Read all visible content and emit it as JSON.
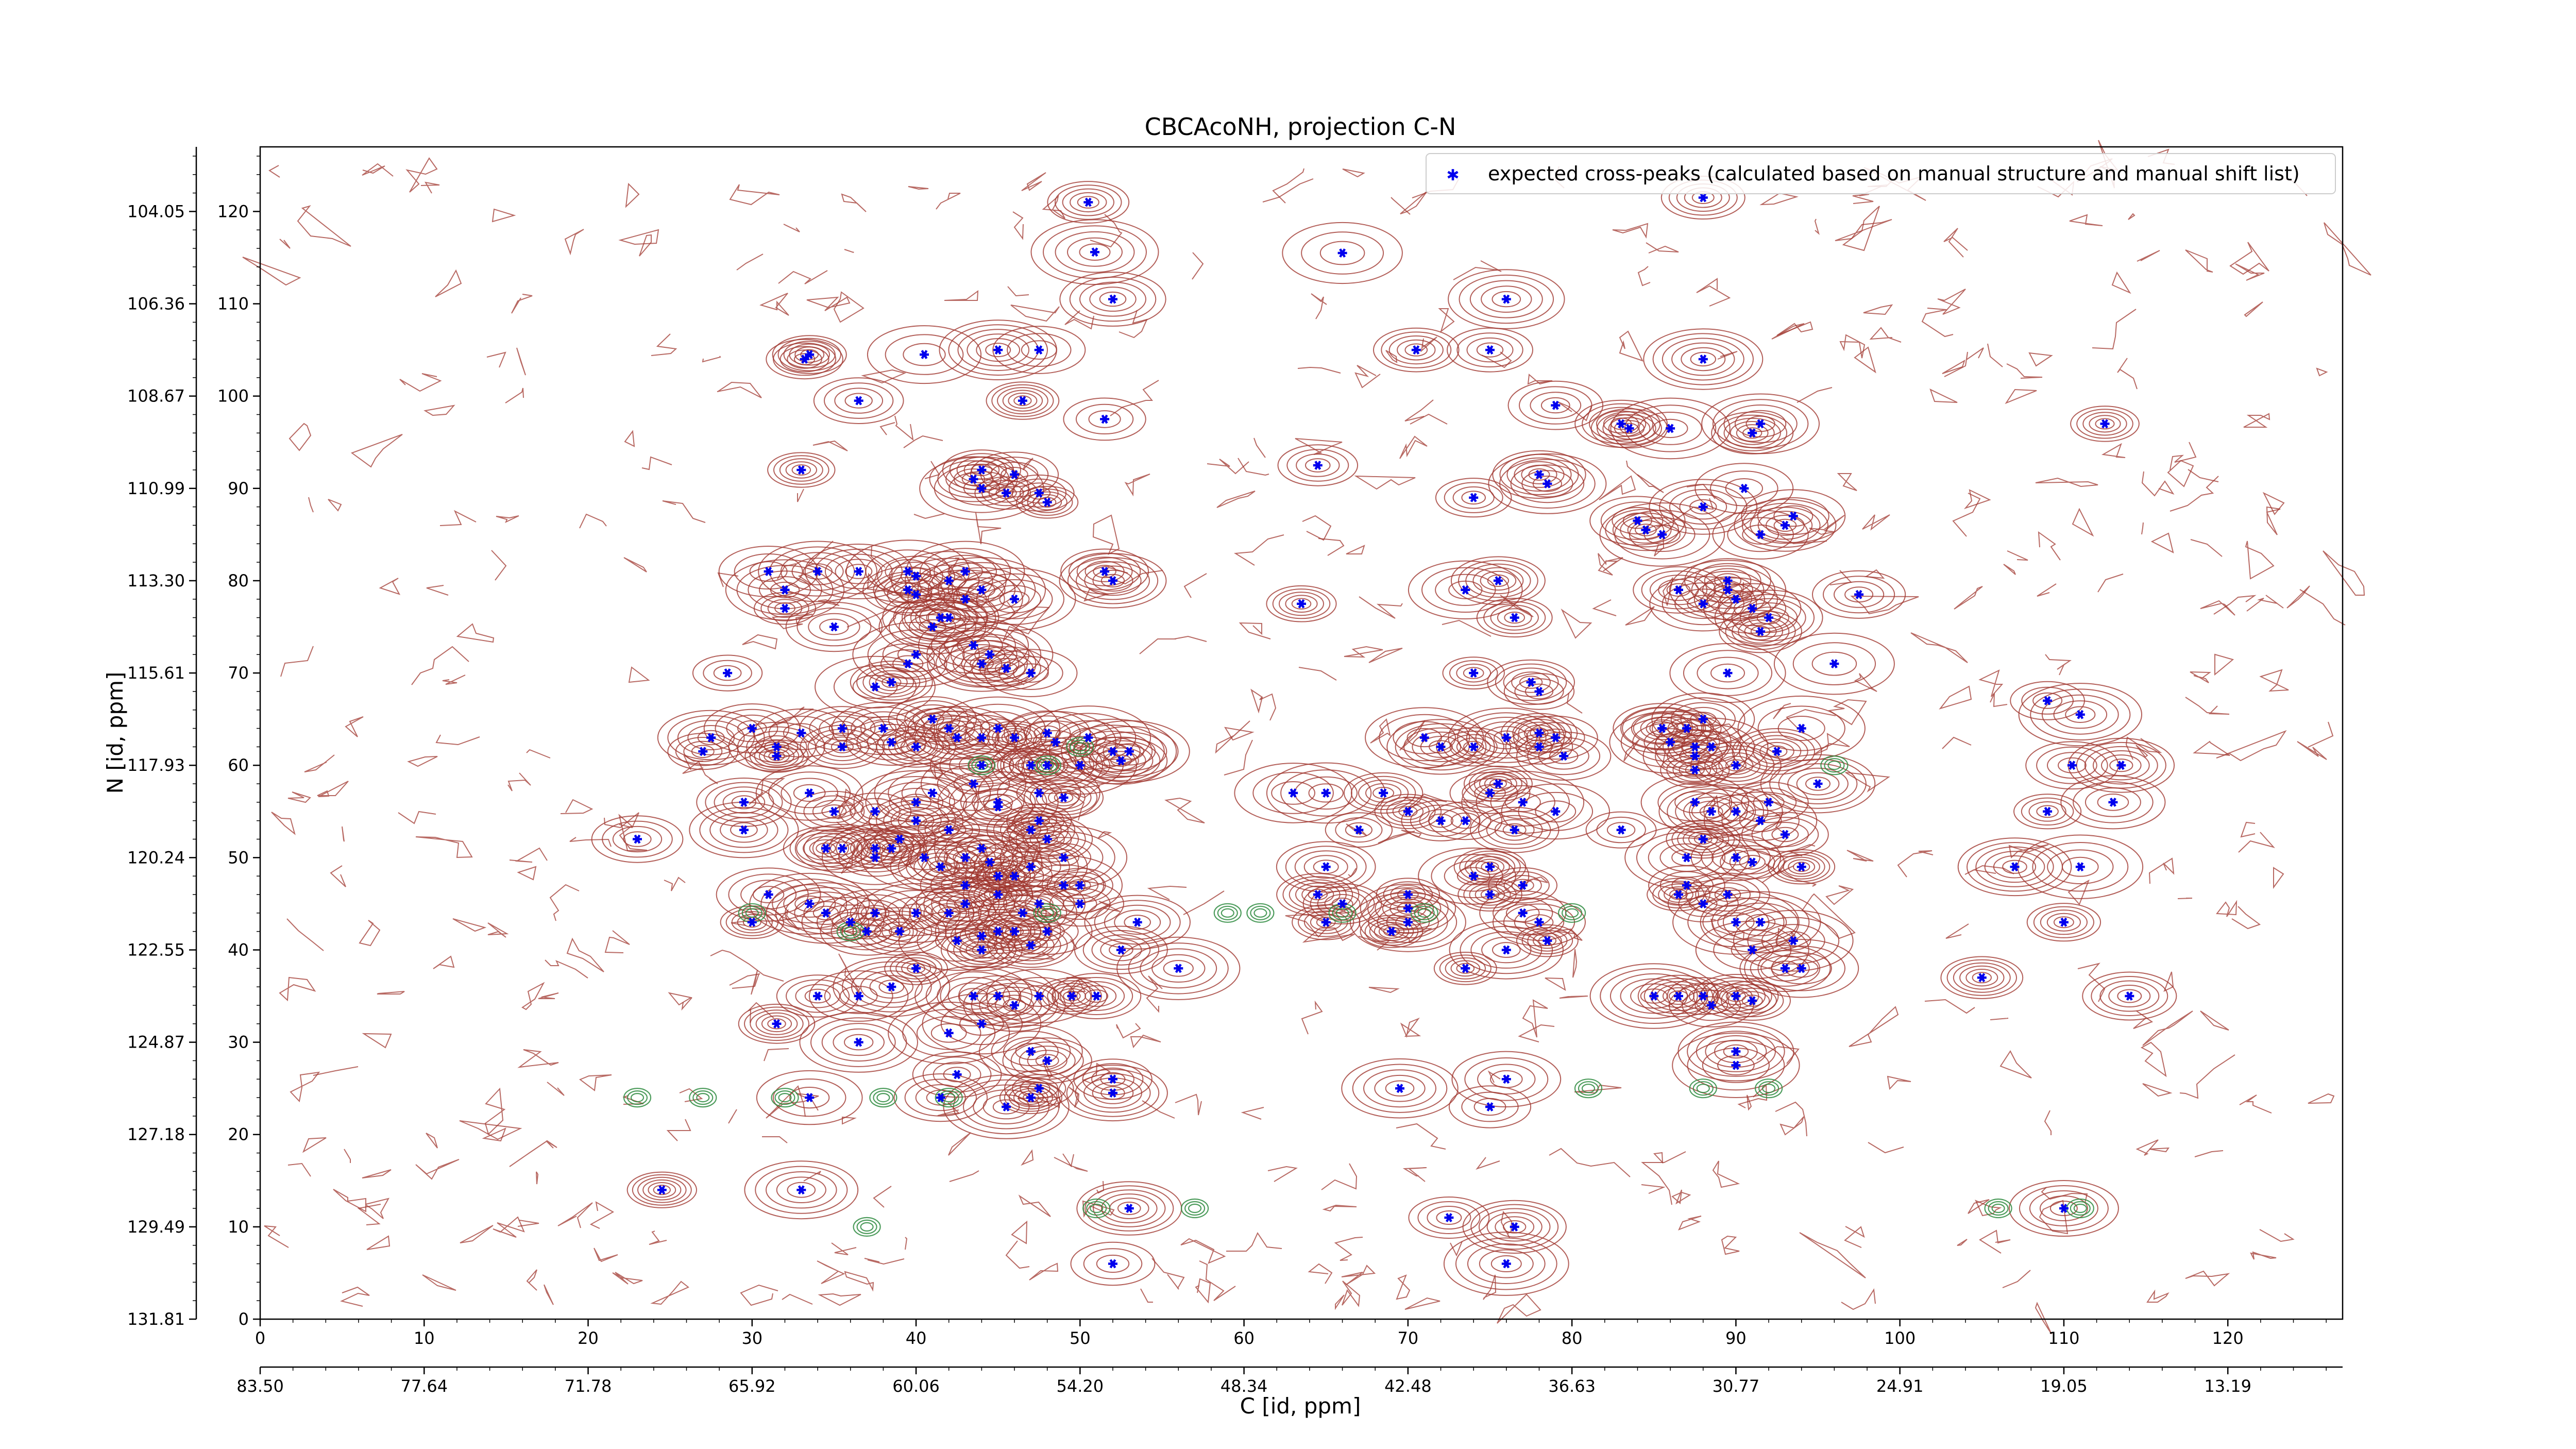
{
  "chart_data": {
    "type": "scatter",
    "title": "CBCAcoNH, projection C-N",
    "xlabel": "C [id, ppm]",
    "ylabel": "N [id, ppm]",
    "xlim": [
      0,
      127
    ],
    "ylim": [
      0,
      127
    ],
    "x_ticks": [
      "0",
      "10",
      "20",
      "30",
      "40",
      "50",
      "60",
      "70",
      "80",
      "90",
      "100",
      "110",
      "120"
    ],
    "y_ticks": [
      "0",
      "10",
      "20",
      "30",
      "40",
      "50",
      "60",
      "70",
      "80",
      "90",
      "100",
      "110",
      "120"
    ],
    "x_ppm_ticks": [
      "83.50",
      "77.64",
      "71.78",
      "65.92",
      "60.06",
      "54.20",
      "48.34",
      "42.48",
      "36.63",
      "30.77",
      "24.91",
      "19.05",
      "13.19"
    ],
    "y_ppm_ticks": [
      "131.81",
      "129.49",
      "127.18",
      "124.87",
      "122.55",
      "120.24",
      "117.93",
      "115.61",
      "113.30",
      "110.99",
      "108.67",
      "106.36",
      "104.05"
    ],
    "legend": {
      "label": "expected cross-peaks (calculated based on manual structure and manual shift list)",
      "placement": "top-right"
    },
    "colors": {
      "positive_contour": "#a0372f",
      "negative_contour": "#2e8b3f",
      "peak_marker": "#0000ee"
    },
    "series": [
      {
        "name": "expected cross-peaks (calculated based on manual structure and manual shift list)",
        "points": [
          [
            50.5,
            121
          ],
          [
            50.9,
            115.6
          ],
          [
            52,
            110.5
          ],
          [
            66,
            115.5
          ],
          [
            76,
            110.5
          ],
          [
            88,
            121.5
          ],
          [
            33.5,
            104.5
          ],
          [
            33.2,
            104
          ],
          [
            40.5,
            104.5
          ],
          [
            45,
            105
          ],
          [
            47.5,
            105
          ],
          [
            70.5,
            105
          ],
          [
            75,
            105
          ],
          [
            88,
            104
          ],
          [
            36.5,
            99.5
          ],
          [
            46.5,
            99.5
          ],
          [
            51.5,
            97.5
          ],
          [
            79,
            99
          ],
          [
            83,
            97
          ],
          [
            83.5,
            96.5
          ],
          [
            86,
            96.5
          ],
          [
            91,
            96
          ],
          [
            91.5,
            97
          ],
          [
            112.5,
            97
          ],
          [
            33,
            92
          ],
          [
            43.5,
            91
          ],
          [
            44,
            92
          ],
          [
            46,
            91.5
          ],
          [
            44,
            90
          ],
          [
            45.5,
            89.5
          ],
          [
            47.5,
            89.5
          ],
          [
            48,
            88.5
          ],
          [
            64.5,
            92.5
          ],
          [
            74,
            89
          ],
          [
            78,
            91.5
          ],
          [
            78.5,
            90.5
          ],
          [
            88,
            88
          ],
          [
            90.5,
            90
          ],
          [
            84,
            86.5
          ],
          [
            84.5,
            85.5
          ],
          [
            85.5,
            85
          ],
          [
            91.5,
            85
          ],
          [
            93,
            86
          ],
          [
            93.5,
            87
          ],
          [
            51.5,
            81
          ],
          [
            52,
            80
          ],
          [
            73.5,
            79
          ],
          [
            75.5,
            80
          ],
          [
            31,
            81
          ],
          [
            34,
            81
          ],
          [
            36.5,
            81
          ],
          [
            39.5,
            81
          ],
          [
            40,
            80.5
          ],
          [
            42,
            80
          ],
          [
            43,
            81
          ],
          [
            43,
            78
          ],
          [
            39.5,
            79
          ],
          [
            40,
            78.5
          ],
          [
            41.5,
            76
          ],
          [
            44,
            79
          ],
          [
            32,
            79
          ],
          [
            32,
            77
          ],
          [
            35,
            75
          ],
          [
            41,
            75
          ],
          [
            42,
            76
          ],
          [
            46,
            78
          ],
          [
            63.5,
            77.5
          ],
          [
            76.5,
            76
          ],
          [
            86.5,
            79
          ],
          [
            88,
            77.5
          ],
          [
            89.5,
            80
          ],
          [
            90,
            78
          ],
          [
            91,
            77
          ],
          [
            92,
            76
          ],
          [
            89.5,
            79
          ],
          [
            91.5,
            74.5
          ],
          [
            97.5,
            78.5
          ],
          [
            96,
            71
          ],
          [
            74,
            70
          ],
          [
            77.5,
            69
          ],
          [
            78,
            68
          ],
          [
            28.5,
            70
          ],
          [
            44,
            71
          ],
          [
            45.5,
            70.5
          ],
          [
            47,
            70
          ],
          [
            38.5,
            69
          ],
          [
            37.5,
            68.5
          ],
          [
            40,
            72
          ],
          [
            39.5,
            71
          ],
          [
            44.5,
            72
          ],
          [
            43.5,
            73
          ],
          [
            89.5,
            70
          ],
          [
            30,
            64
          ],
          [
            31.5,
            62
          ],
          [
            27.5,
            63
          ],
          [
            27,
            61.5
          ],
          [
            31.5,
            61
          ],
          [
            33,
            63.5
          ],
          [
            35.5,
            64
          ],
          [
            38,
            64
          ],
          [
            35.5,
            62
          ],
          [
            38.5,
            62.5
          ],
          [
            42,
            64
          ],
          [
            42.5,
            63
          ],
          [
            41,
            65
          ],
          [
            40,
            62
          ],
          [
            44,
            63
          ],
          [
            45,
            64
          ],
          [
            46,
            63
          ],
          [
            48,
            63.5
          ],
          [
            48.5,
            62.5
          ],
          [
            50.5,
            63
          ],
          [
            52,
            61.5
          ],
          [
            52.5,
            60.5
          ],
          [
            53,
            61.5
          ],
          [
            50,
            60
          ],
          [
            44,
            60
          ],
          [
            47,
            60
          ],
          [
            48,
            60
          ],
          [
            43.5,
            58
          ],
          [
            41,
            57
          ],
          [
            40,
            56
          ],
          [
            45,
            56
          ],
          [
            45,
            55.5
          ],
          [
            47.5,
            57
          ],
          [
            49,
            56.5
          ],
          [
            71,
            63
          ],
          [
            72,
            62
          ],
          [
            74,
            62
          ],
          [
            76,
            63
          ],
          [
            78,
            63.5
          ],
          [
            78,
            62
          ],
          [
            79,
            63
          ],
          [
            79.5,
            61
          ],
          [
            85.5,
            64
          ],
          [
            86,
            62.5
          ],
          [
            87.5,
            62
          ],
          [
            88.5,
            62
          ],
          [
            87.5,
            61
          ],
          [
            87.5,
            59.5
          ],
          [
            90,
            60
          ],
          [
            88,
            65
          ],
          [
            87,
            64
          ],
          [
            85.5,
            64
          ],
          [
            92.5,
            61.5
          ],
          [
            94,
            64
          ],
          [
            95,
            58
          ],
          [
            109,
            67
          ],
          [
            111,
            65.5
          ],
          [
            110.5,
            60
          ],
          [
            113.5,
            60
          ],
          [
            33.5,
            57
          ],
          [
            29.5,
            56
          ],
          [
            29.5,
            53
          ],
          [
            35,
            55
          ],
          [
            37.5,
            55
          ],
          [
            40,
            54
          ],
          [
            42,
            53
          ],
          [
            40.5,
            50
          ],
          [
            41.5,
            49
          ],
          [
            43,
            50
          ],
          [
            44,
            51
          ],
          [
            44.5,
            49.5
          ],
          [
            38.5,
            51
          ],
          [
            34.5,
            51
          ],
          [
            35.5,
            51
          ],
          [
            37.5,
            51
          ],
          [
            37.5,
            50
          ],
          [
            39,
            52
          ],
          [
            47,
            53
          ],
          [
            47.5,
            54
          ],
          [
            48,
            52
          ],
          [
            49,
            50
          ],
          [
            47,
            49
          ],
          [
            46,
            48
          ],
          [
            45,
            48
          ],
          [
            63,
            57
          ],
          [
            65,
            57
          ],
          [
            68.5,
            57
          ],
          [
            67,
            53
          ],
          [
            65,
            49
          ],
          [
            70,
            55
          ],
          [
            72,
            54
          ],
          [
            73.5,
            54
          ],
          [
            75,
            57
          ],
          [
            75.5,
            58
          ],
          [
            77,
            56
          ],
          [
            79,
            55
          ],
          [
            76.5,
            53
          ],
          [
            83,
            53
          ],
          [
            87.5,
            56
          ],
          [
            88.5,
            55
          ],
          [
            90,
            55
          ],
          [
            91.5,
            54
          ],
          [
            92,
            56
          ],
          [
            93,
            52.5
          ],
          [
            90,
            50
          ],
          [
            91,
            49.5
          ],
          [
            94,
            49
          ],
          [
            87,
            50
          ],
          [
            88,
            52
          ],
          [
            87,
            47
          ],
          [
            107,
            49
          ],
          [
            111,
            49
          ],
          [
            109,
            55
          ],
          [
            113,
            56
          ],
          [
            23,
            52
          ],
          [
            31,
            46
          ],
          [
            30,
            43
          ],
          [
            33.5,
            45
          ],
          [
            34.5,
            44
          ],
          [
            37,
            42
          ],
          [
            36,
            43
          ],
          [
            37.5,
            44
          ],
          [
            39,
            42
          ],
          [
            40,
            44
          ],
          [
            42,
            44
          ],
          [
            43,
            47
          ],
          [
            43,
            45
          ],
          [
            45,
            42
          ],
          [
            45,
            46
          ],
          [
            46.5,
            44
          ],
          [
            47.5,
            45
          ],
          [
            49,
            47
          ],
          [
            50,
            47
          ],
          [
            42.5,
            41
          ],
          [
            44,
            41.5
          ],
          [
            44,
            40
          ],
          [
            46,
            42
          ],
          [
            47,
            40.5
          ],
          [
            48,
            42
          ],
          [
            50,
            45
          ],
          [
            52.5,
            40
          ],
          [
            53.5,
            43
          ],
          [
            56,
            38
          ],
          [
            64.5,
            46
          ],
          [
            65,
            43
          ],
          [
            66,
            45
          ],
          [
            70,
            46
          ],
          [
            70,
            44.5
          ],
          [
            70,
            43
          ],
          [
            74,
            48
          ],
          [
            75,
            46
          ],
          [
            75,
            49
          ],
          [
            77,
            44
          ],
          [
            77,
            47
          ],
          [
            78,
            43
          ],
          [
            76,
            40
          ],
          [
            78.5,
            41
          ],
          [
            69,
            42
          ],
          [
            86.5,
            46
          ],
          [
            89.5,
            46
          ],
          [
            88,
            45
          ],
          [
            90,
            43
          ],
          [
            91.5,
            43
          ],
          [
            93.5,
            41
          ],
          [
            91,
            40
          ],
          [
            93,
            38
          ],
          [
            94,
            38
          ],
          [
            105,
            37
          ],
          [
            110,
            43
          ],
          [
            114,
            35
          ],
          [
            40,
            38
          ],
          [
            34,
            35
          ],
          [
            31.5,
            32
          ],
          [
            36.5,
            35
          ],
          [
            38.5,
            36
          ],
          [
            43.5,
            35
          ],
          [
            45,
            35
          ],
          [
            47.5,
            35
          ],
          [
            49.5,
            35
          ],
          [
            51,
            35
          ],
          [
            46,
            34
          ],
          [
            44,
            32
          ],
          [
            42,
            31
          ],
          [
            36.5,
            30
          ],
          [
            73.5,
            38
          ],
          [
            85,
            35
          ],
          [
            86.5,
            35
          ],
          [
            88,
            35
          ],
          [
            88.5,
            34
          ],
          [
            90,
            35
          ],
          [
            91,
            34.5
          ],
          [
            47,
            29
          ],
          [
            48,
            28
          ],
          [
            42.5,
            26.5
          ],
          [
            52,
            26
          ],
          [
            52,
            24.5
          ],
          [
            47.5,
            25
          ],
          [
            69.5,
            25
          ],
          [
            76,
            26
          ],
          [
            75,
            23
          ],
          [
            90,
            27.5
          ],
          [
            90,
            29
          ],
          [
            33.5,
            24
          ],
          [
            41.5,
            24
          ],
          [
            45.5,
            23
          ],
          [
            47,
            24
          ],
          [
            24.5,
            14
          ],
          [
            33,
            14
          ],
          [
            53,
            12
          ],
          [
            72.5,
            11
          ],
          [
            76.5,
            10
          ],
          [
            110,
            12
          ],
          [
            52,
            6
          ],
          [
            76,
            6
          ]
        ]
      }
    ]
  }
}
